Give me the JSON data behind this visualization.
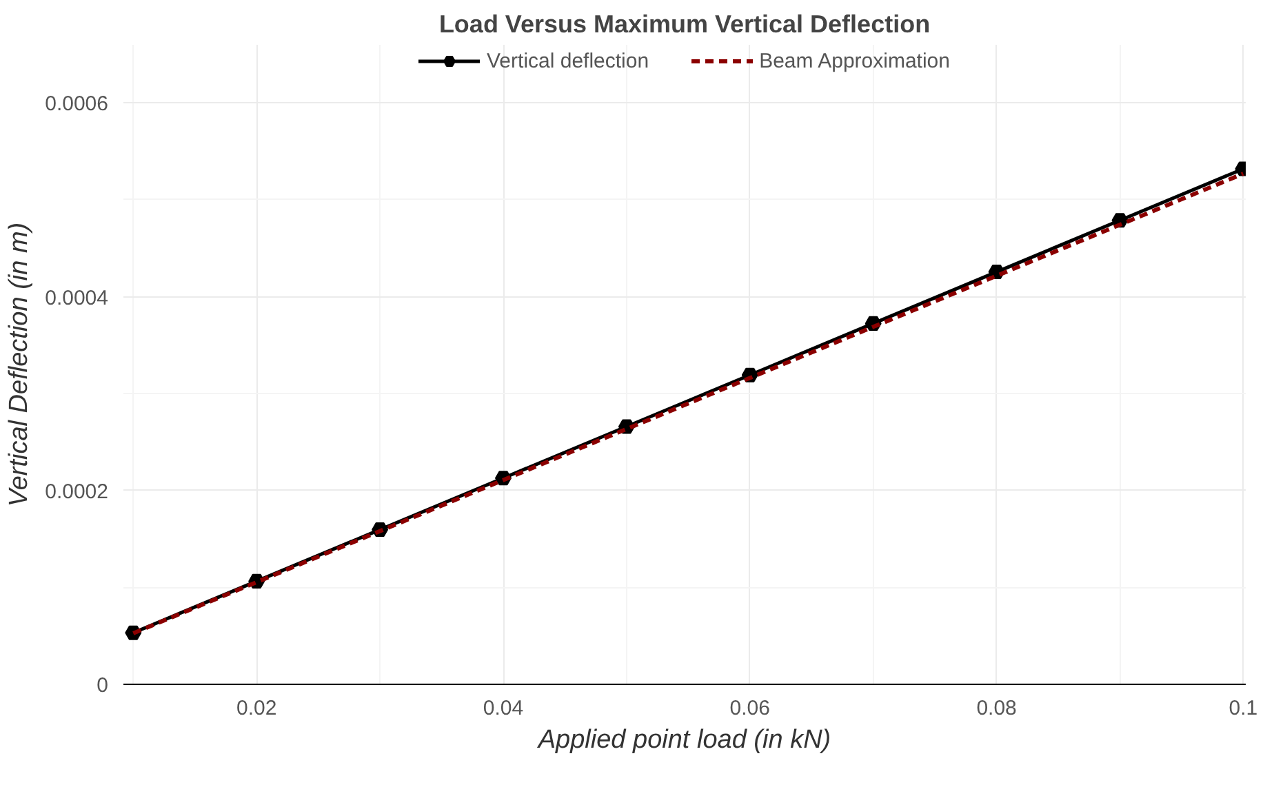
{
  "chart_data": {
    "type": "line",
    "title": "Load Versus Maximum Vertical Deflection",
    "xlabel": "Applied point load (in kN)",
    "ylabel": "Vertical Deflection (in m)",
    "x": [
      0.01,
      0.02,
      0.03,
      0.04,
      0.05,
      0.06,
      0.07,
      0.08,
      0.09,
      0.1
    ],
    "series": [
      {
        "name": "Vertical deflection",
        "color": "#000000",
        "marker": "circle",
        "line_style": "solid",
        "values": [
          5.32e-05,
          0.0001064,
          0.0001596,
          0.0002128,
          0.000266,
          0.0003192,
          0.0003724,
          0.0004256,
          0.0004788,
          0.000532
        ]
      },
      {
        "name": "Beam Approximation",
        "color": "#8b0000",
        "marker": "none",
        "line_style": "dashed",
        "x": [
          0.01,
          0.1
        ],
        "values": [
          5.27e-05,
          0.000527
        ]
      }
    ],
    "xlim": [
      0.0092,
      0.1002
    ],
    "ylim": [
      0,
      0.00066
    ],
    "xticks": [
      {
        "value": 0.02,
        "label": "0.02"
      },
      {
        "value": 0.04,
        "label": "0.04"
      },
      {
        "value": 0.06,
        "label": "0.06"
      },
      {
        "value": 0.08,
        "label": "0.08"
      },
      {
        "value": 0.1,
        "label": "0.1"
      }
    ],
    "yticks": [
      {
        "value": 0,
        "label": "0"
      },
      {
        "value": 0.0002,
        "label": "0.0002"
      },
      {
        "value": 0.0004,
        "label": "0.0004"
      },
      {
        "value": 0.0006,
        "label": "0.0006"
      }
    ],
    "grid": true,
    "legend": "top"
  }
}
